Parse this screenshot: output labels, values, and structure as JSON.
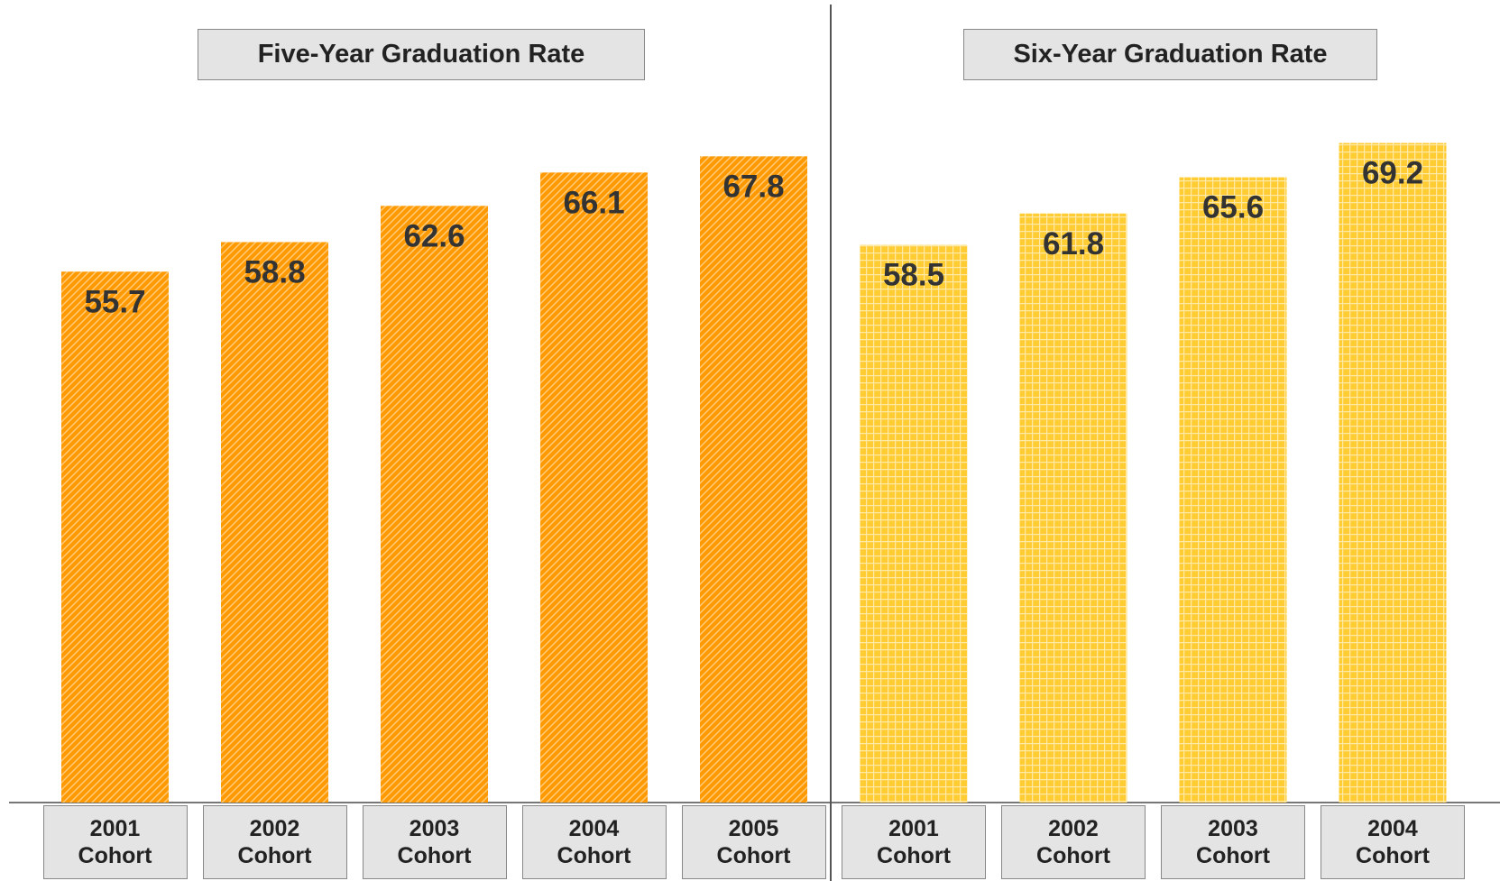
{
  "chart_data": [
    {
      "type": "bar",
      "title": "Five-Year Graduation Rate",
      "categories": [
        "2001 Cohort",
        "2002 Cohort",
        "2003 Cohort",
        "2004 Cohort",
        "2005 Cohort"
      ],
      "values": [
        55.7,
        58.8,
        62.6,
        66.1,
        67.8
      ],
      "color": "#ff9900"
    },
    {
      "type": "bar",
      "title": "Six-Year Graduation Rate",
      "categories": [
        "2001 Cohort",
        "2002 Cohort",
        "2003 Cohort",
        "2004 Cohort"
      ],
      "values": [
        58.5,
        61.8,
        65.6,
        69.2
      ],
      "color": "#ffcc33"
    }
  ]
}
